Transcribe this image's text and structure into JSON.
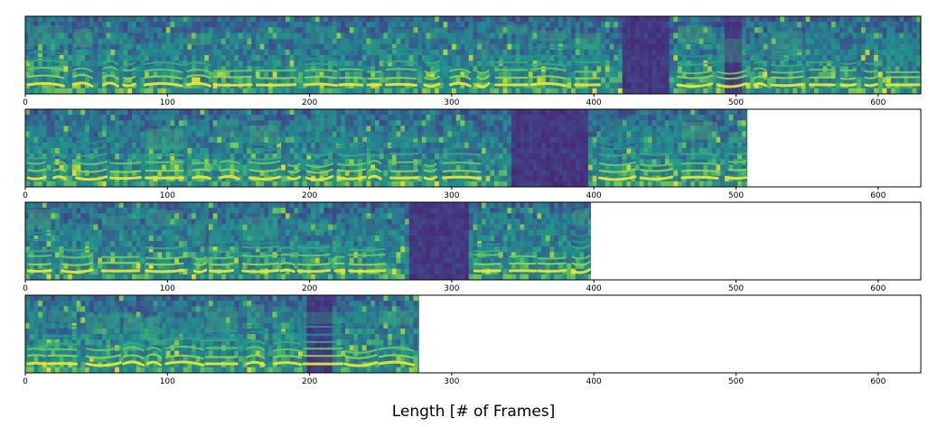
{
  "chart_data": [
    {
      "type": "heatmap",
      "frames": 630,
      "xlim": [
        0,
        630
      ],
      "xticks": [
        0,
        100,
        200,
        300,
        400,
        500,
        600
      ],
      "xtick_labels": [
        "0",
        "100",
        "200",
        "300",
        "400",
        "500",
        "600"
      ],
      "xlabel": "",
      "title": "",
      "colormap": "viridis",
      "silences": [
        [
          418,
          450
        ],
        [
          490,
          503
        ]
      ]
    },
    {
      "type": "heatmap",
      "frames": 508,
      "xlim": [
        0,
        630
      ],
      "xticks": [
        0,
        100,
        200,
        300,
        400,
        500,
        600
      ],
      "xtick_labels": [
        "0",
        "100",
        "200",
        "300",
        "400",
        "500",
        "600"
      ],
      "xlabel": "",
      "title": "",
      "colormap": "viridis",
      "silences": [
        [
          340,
          395
        ]
      ]
    },
    {
      "type": "heatmap",
      "frames": 398,
      "xlim": [
        0,
        630
      ],
      "xticks": [
        0,
        100,
        200,
        300,
        400,
        500,
        600
      ],
      "xtick_labels": [
        "0",
        "100",
        "200",
        "300",
        "400",
        "500",
        "600"
      ],
      "xlabel": "",
      "title": "",
      "colormap": "viridis",
      "silences": [
        [
          268,
          310
        ]
      ]
    },
    {
      "type": "heatmap",
      "frames": 277,
      "xlim": [
        0,
        630
      ],
      "xticks": [
        0,
        100,
        200,
        300,
        400,
        500,
        600
      ],
      "xtick_labels": [
        "0",
        "100",
        "200",
        "300",
        "400",
        "500",
        "600"
      ],
      "xlabel": "",
      "title": "",
      "colormap": "viridis",
      "silences": [
        [
          198,
          215
        ]
      ]
    }
  ],
  "figure": {
    "xlabel": "Length [# of Frames]"
  },
  "colors": {
    "viridis_stops": [
      "#440154",
      "#482777",
      "#3f4a8a",
      "#31678e",
      "#26838f",
      "#1f9d8a",
      "#6cce5a",
      "#b6de2b",
      "#fee825"
    ],
    "axis_line": "#000000",
    "background": "#ffffff"
  }
}
